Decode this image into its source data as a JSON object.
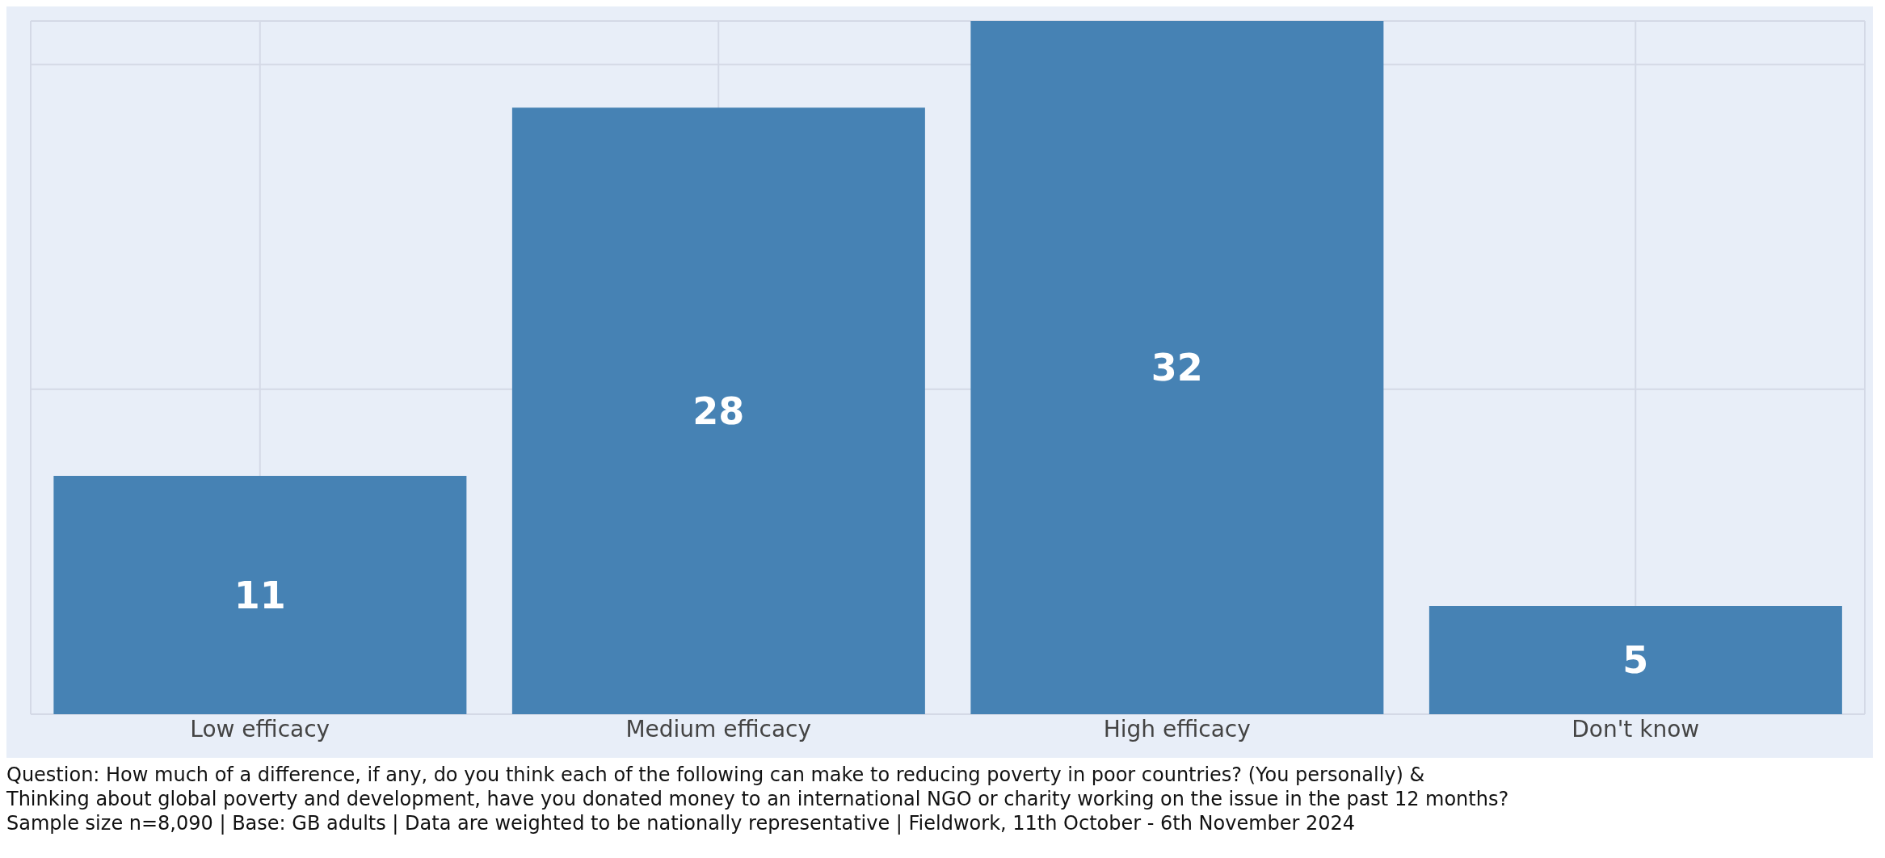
{
  "chart_data": {
    "type": "bar",
    "categories": [
      "Low efficacy",
      "Medium efficacy",
      "High efficacy",
      "Don't know"
    ],
    "values": [
      11,
      28,
      32,
      5
    ],
    "color": "#4682b4",
    "data_labels": true,
    "ylim": [
      0,
      32
    ],
    "tick_labels": "x",
    "grid": true,
    "annotations": [
      "Question: How much of a difference, if any, do you think each of the following can make to reducing poverty in poor countries? (You personally) &",
      "Thinking about global poverty and development, have you donated money to an international NGO or charity working on the issue in the past 12 months?",
      "Sample size n=8,090 | Base: GB adults | Data are weighted to be nationally representative | Fieldwork, 11th October - 6th November 2024"
    ]
  }
}
